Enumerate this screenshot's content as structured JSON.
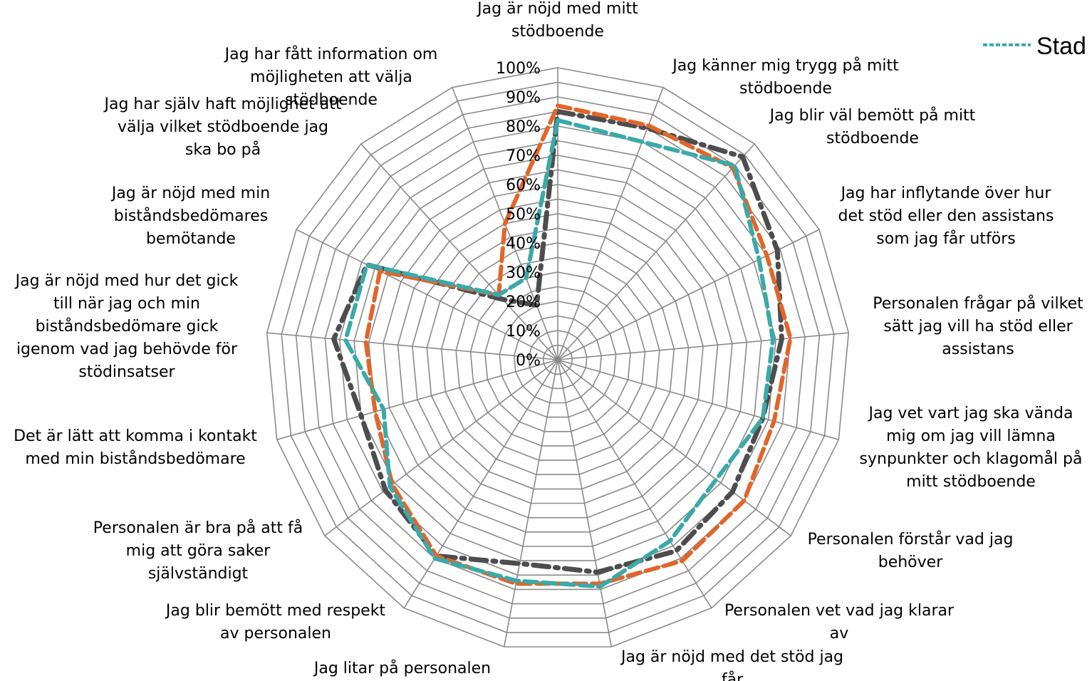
{
  "chart_data": {
    "type": "radar",
    "categories": [
      "Jag är nöjd med mitt stödboende",
      "Jag känner mig trygg på mitt stödboende",
      "Jag blir väl bemött på mitt stödboende",
      "Jag har inflytande över hur det stöd eller den assistans som jag får utförs",
      "Personalen frågar på vilket sätt jag vill ha stöd eller assistans",
      "Jag vet vart jag ska vända mig om jag vill lämna synpunkter och klagomål på mitt stödboende",
      "Personalen förstår vad jag behöver",
      "Personalen vet vad jag klarar av",
      "Jag är nöjd med det stöd jag får",
      "Jag litar på personalen",
      "Jag blir bemött med respekt av personalen",
      "Personalen är bra på att få mig att göra saker självständigt",
      "Det är lätt att komma i kontakt med min biståndsbedömare",
      "Jag är nöjd med hur det gick till när jag och min biståndsbedömare gick igenom vad jag behövde för stödinsatser",
      "Jag är nöjd med min biståndsbedömares bemötande",
      "Jag har själv haft möjlighet att välja vilket stödboende jag ska bo på",
      "Jag har fått information om möjligheten att välja stödboende"
    ],
    "category_lines": [
      [
        "Jag är nöjd med mitt",
        "stödboende"
      ],
      [
        "Jag känner mig trygg på mitt",
        "stödboende"
      ],
      [
        "Jag blir väl bemött på mitt",
        "stödboende"
      ],
      [
        "Jag har inflytande över hur",
        "det stöd eller den assistans",
        "som jag får utförs"
      ],
      [
        "Personalen frågar på vilket",
        "sätt jag vill ha stöd eller",
        "assistans"
      ],
      [
        "Jag vet vart jag ska vända",
        "mig om jag vill lämna",
        "synpunkter och klagomål på",
        "mitt stödboende"
      ],
      [
        "Personalen förstår vad jag",
        "behöver"
      ],
      [
        "Personalen vet vad jag klarar",
        "av"
      ],
      [
        "Jag är nöjd med det stöd jag",
        "får"
      ],
      [
        "Jag litar på personalen"
      ],
      [
        "Jag blir bemött med respekt",
        "av personalen"
      ],
      [
        "Personalen är bra på att få",
        "mig att göra saker",
        "självständigt"
      ],
      [
        "Det är lätt att komma i kontakt",
        "med min biståndsbedömare"
      ],
      [
        "Jag är nöjd med hur det gick",
        "till när jag och min",
        "biståndsbedömare gick",
        "igenom vad jag behövde för",
        "stödinsatser"
      ],
      [
        "Jag är nöjd med min",
        "biståndsbedömares",
        "bemötande"
      ],
      [
        "Jag har själv haft möjlighet att",
        "välja vilket stödboende jag",
        "ska bo på"
      ],
      [
        "Jag har fått information om",
        "möjligheten att välja",
        "stödboende"
      ]
    ],
    "tick_labels": [
      "0%",
      "10%",
      "20%",
      "30%",
      "40%",
      "50%",
      "60%",
      "70%",
      "80%",
      "90%",
      "100%"
    ],
    "ylim": [
      0,
      100
    ],
    "series": [
      {
        "name": "",
        "color": "#4d4d4d",
        "dash": "dash-dot",
        "values": [
          85,
          85,
          94,
          84,
          77,
          73,
          75,
          77,
          74,
          71,
          79,
          74,
          70,
          77,
          73,
          28,
          20
        ]
      },
      {
        "name": "",
        "color": "#e2652a",
        "dash": "dashed",
        "values": [
          87,
          86,
          89,
          80,
          80,
          77,
          80,
          81,
          78,
          78,
          79,
          71,
          65,
          66,
          68,
          30,
          50
        ]
      },
      {
        "name": "Stad",
        "color": "#3aa9a9",
        "dash": "dashed",
        "values": [
          82,
          80,
          90,
          77,
          74,
          73,
          68,
          73,
          79,
          77,
          80,
          72,
          62,
          73,
          73,
          30,
          30
        ]
      }
    ],
    "legend": {
      "position": "top-right",
      "entries": [
        "Stad"
      ]
    }
  }
}
